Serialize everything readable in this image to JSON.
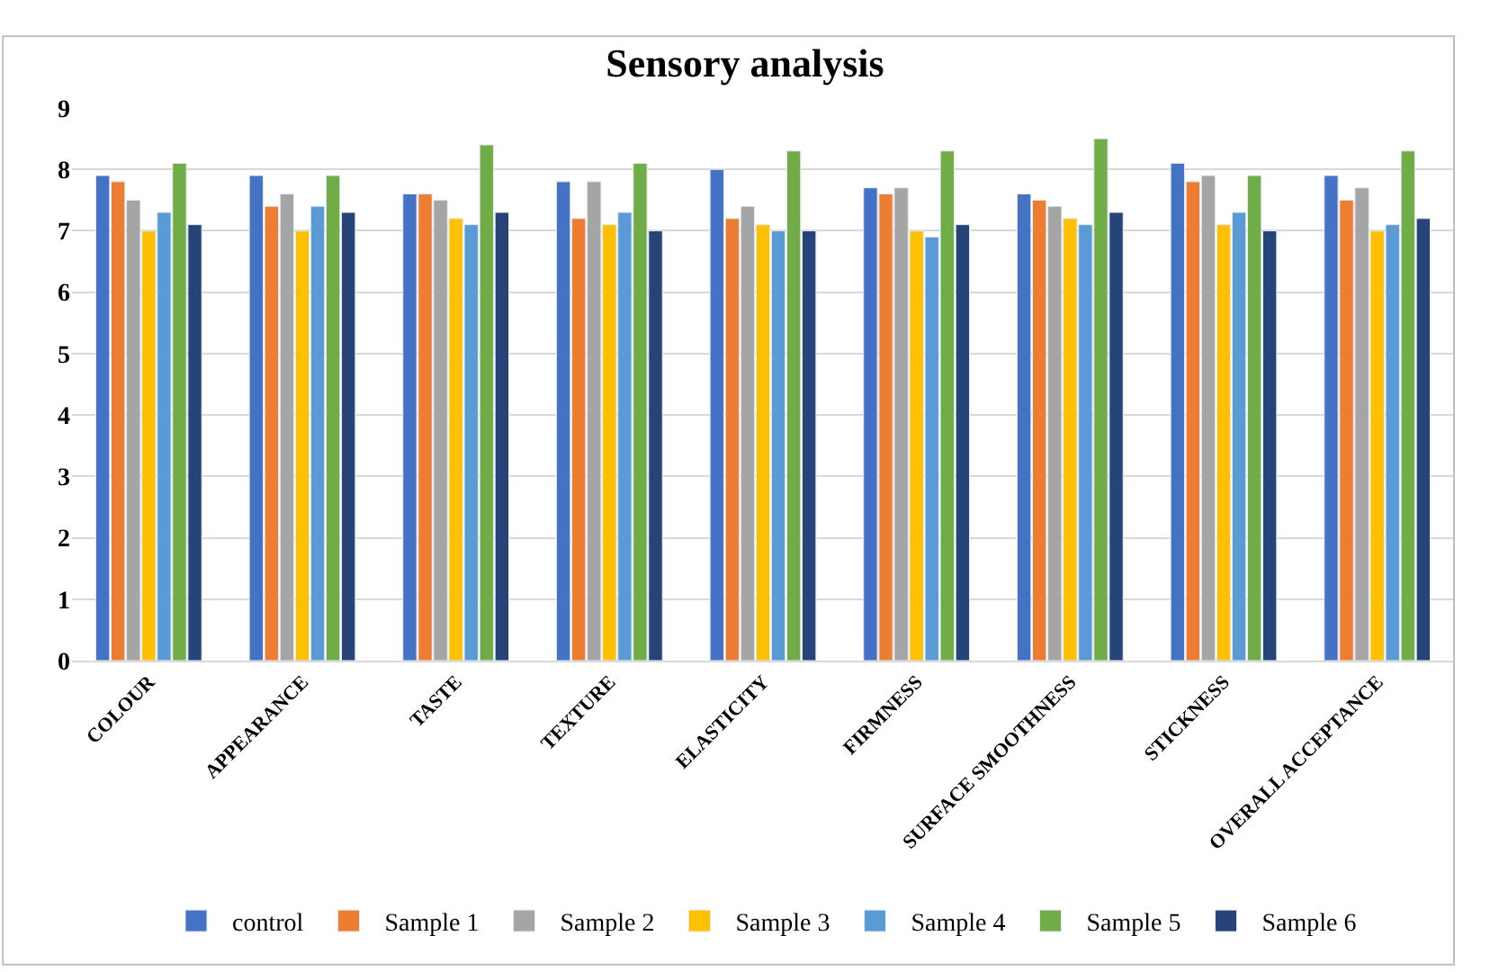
{
  "chart_data": {
    "type": "bar",
    "title": "Sensory analysis",
    "categories": [
      "COLOUR",
      "APPEARANCE",
      "TASTE",
      "TEXTURE",
      "ELASTICITY",
      "FIRMNESS",
      "SURFACE SMOOTHNESS",
      "STICKNESS",
      "OVERALL ACCEPTANCE"
    ],
    "series": [
      {
        "name": "control",
        "color": "#4472c4",
        "values": [
          7.9,
          7.9,
          7.6,
          7.8,
          8.0,
          7.7,
          7.6,
          8.1,
          7.9
        ]
      },
      {
        "name": "Sample 1",
        "color": "#ed7d31",
        "values": [
          7.8,
          7.4,
          7.6,
          7.2,
          7.2,
          7.6,
          7.5,
          7.8,
          7.5
        ]
      },
      {
        "name": "Sample 2",
        "color": "#a5a5a5",
        "values": [
          7.5,
          7.6,
          7.5,
          7.8,
          7.4,
          7.7,
          7.4,
          7.9,
          7.7
        ]
      },
      {
        "name": "Sample 3",
        "color": "#ffc000",
        "values": [
          7.0,
          7.0,
          7.2,
          7.1,
          7.1,
          7.0,
          7.2,
          7.1,
          7.0
        ]
      },
      {
        "name": "Sample 4",
        "color": "#5b9bd5",
        "values": [
          7.3,
          7.4,
          7.1,
          7.3,
          7.0,
          6.9,
          7.1,
          7.3,
          7.1
        ]
      },
      {
        "name": "Sample 5",
        "color": "#70ad47",
        "values": [
          8.1,
          7.9,
          8.4,
          8.1,
          8.3,
          8.3,
          8.5,
          7.9,
          8.3
        ]
      },
      {
        "name": "Sample 6",
        "color": "#264478",
        "values": [
          7.1,
          7.3,
          7.3,
          7.0,
          7.0,
          7.1,
          7.3,
          7.0,
          7.2
        ]
      }
    ],
    "ylim": [
      0,
      9
    ],
    "yticks": [
      0,
      1,
      2,
      3,
      4,
      5,
      6,
      7,
      8,
      9
    ],
    "grid": "y",
    "legend": "bottom"
  }
}
